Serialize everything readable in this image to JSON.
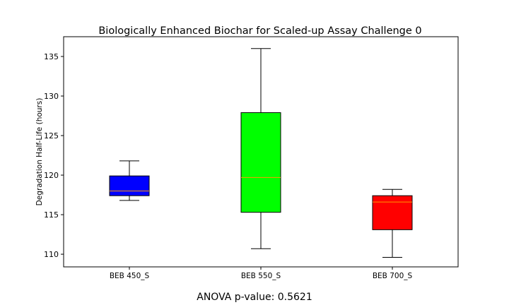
{
  "chart_data": {
    "type": "box",
    "title": "Biologically Enhanced Biochar for Scaled-up Assay Challenge 0",
    "xlabel": "",
    "ylabel": "Degradation Half-Life (hours)",
    "ylim": [
      108.4,
      137.5
    ],
    "yticks": [
      110,
      115,
      120,
      125,
      130,
      135
    ],
    "grid": false,
    "categories": [
      "BEB 450_S",
      "BEB 550_S",
      "BEB 700_S"
    ],
    "boxes": [
      {
        "label": "BEB 450_S",
        "whisker_low": 116.8,
        "q1": 117.4,
        "median": 118.0,
        "q3": 119.9,
        "whisker_high": 121.8,
        "color": "#0000ff",
        "median_color": "#ff9900"
      },
      {
        "label": "BEB 550_S",
        "whisker_low": 110.7,
        "q1": 115.3,
        "median": 119.7,
        "q3": 127.9,
        "whisker_high": 136.0,
        "color": "#00ff00",
        "median_color": "#ff9900"
      },
      {
        "label": "BEB 700_S",
        "whisker_low": 109.6,
        "q1": 113.1,
        "median": 116.6,
        "q3": 117.4,
        "whisker_high": 118.2,
        "color": "#ff0000",
        "median_color": "#ff9900"
      }
    ]
  },
  "annotation": "ANOVA p-value: 0.5621"
}
